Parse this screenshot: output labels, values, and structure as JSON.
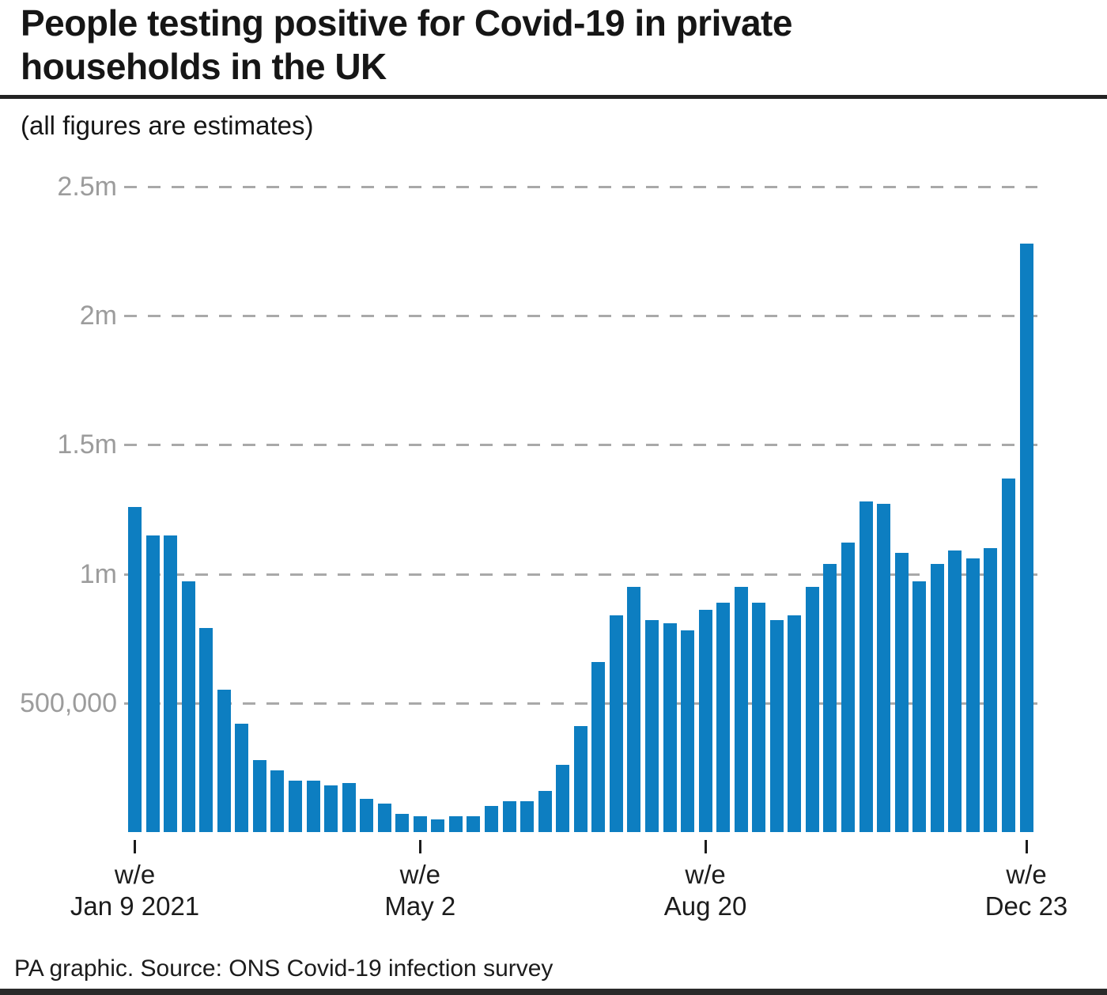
{
  "header": {
    "title_lines": [
      "People testing positive for Covid-19 in private",
      "households in the UK"
    ],
    "subtitle": "(all figures are estimates)"
  },
  "footer": {
    "source": "PA graphic. Source: ONS Covid-19 infection survey"
  },
  "colors": {
    "bar": "#0d7ec1",
    "gridline": "#a9a9a9",
    "y_label": "#9c9c9c",
    "text": "#1c1c1c"
  },
  "chart_data": {
    "type": "bar",
    "title": "People testing positive for Covid-19 in private households in the UK",
    "subtitle": "(all figures are estimates)",
    "unit": "millions of people (weekly estimates)",
    "ylim": [
      0,
      2.5
    ],
    "grid": "horizontal dashed",
    "legend": "none",
    "bar_color": "#0d7ec1",
    "y_ticks": [
      {
        "value": 2.5,
        "label": "2.5m"
      },
      {
        "value": 2.0,
        "label": "2m"
      },
      {
        "value": 1.5,
        "label": "1.5m"
      },
      {
        "value": 1.0,
        "label": "1m"
      },
      {
        "value": 0.5,
        "label": "500,000"
      }
    ],
    "x_ticks": [
      {
        "index": 0,
        "label_lines": [
          "w/e",
          "Jan 9 2021"
        ]
      },
      {
        "index": 16,
        "label_lines": [
          "w/e",
          "May 2"
        ]
      },
      {
        "index": 32,
        "label_lines": [
          "w/e",
          "Aug 20"
        ]
      },
      {
        "index": 50,
        "label_lines": [
          "w/e",
          "Dec 23"
        ]
      }
    ],
    "values": [
      1.26,
      1.15,
      1.15,
      0.97,
      0.79,
      0.55,
      0.42,
      0.28,
      0.24,
      0.2,
      0.2,
      0.18,
      0.19,
      0.13,
      0.11,
      0.07,
      0.06,
      0.05,
      0.06,
      0.06,
      0.1,
      0.12,
      0.12,
      0.16,
      0.26,
      0.41,
      0.66,
      0.84,
      0.95,
      0.82,
      0.81,
      0.78,
      0.86,
      0.89,
      0.95,
      0.89,
      0.82,
      0.84,
      0.95,
      1.04,
      1.12,
      1.28,
      1.27,
      1.08,
      0.97,
      1.04,
      1.09,
      1.06,
      1.1,
      1.37,
      2.28
    ]
  }
}
